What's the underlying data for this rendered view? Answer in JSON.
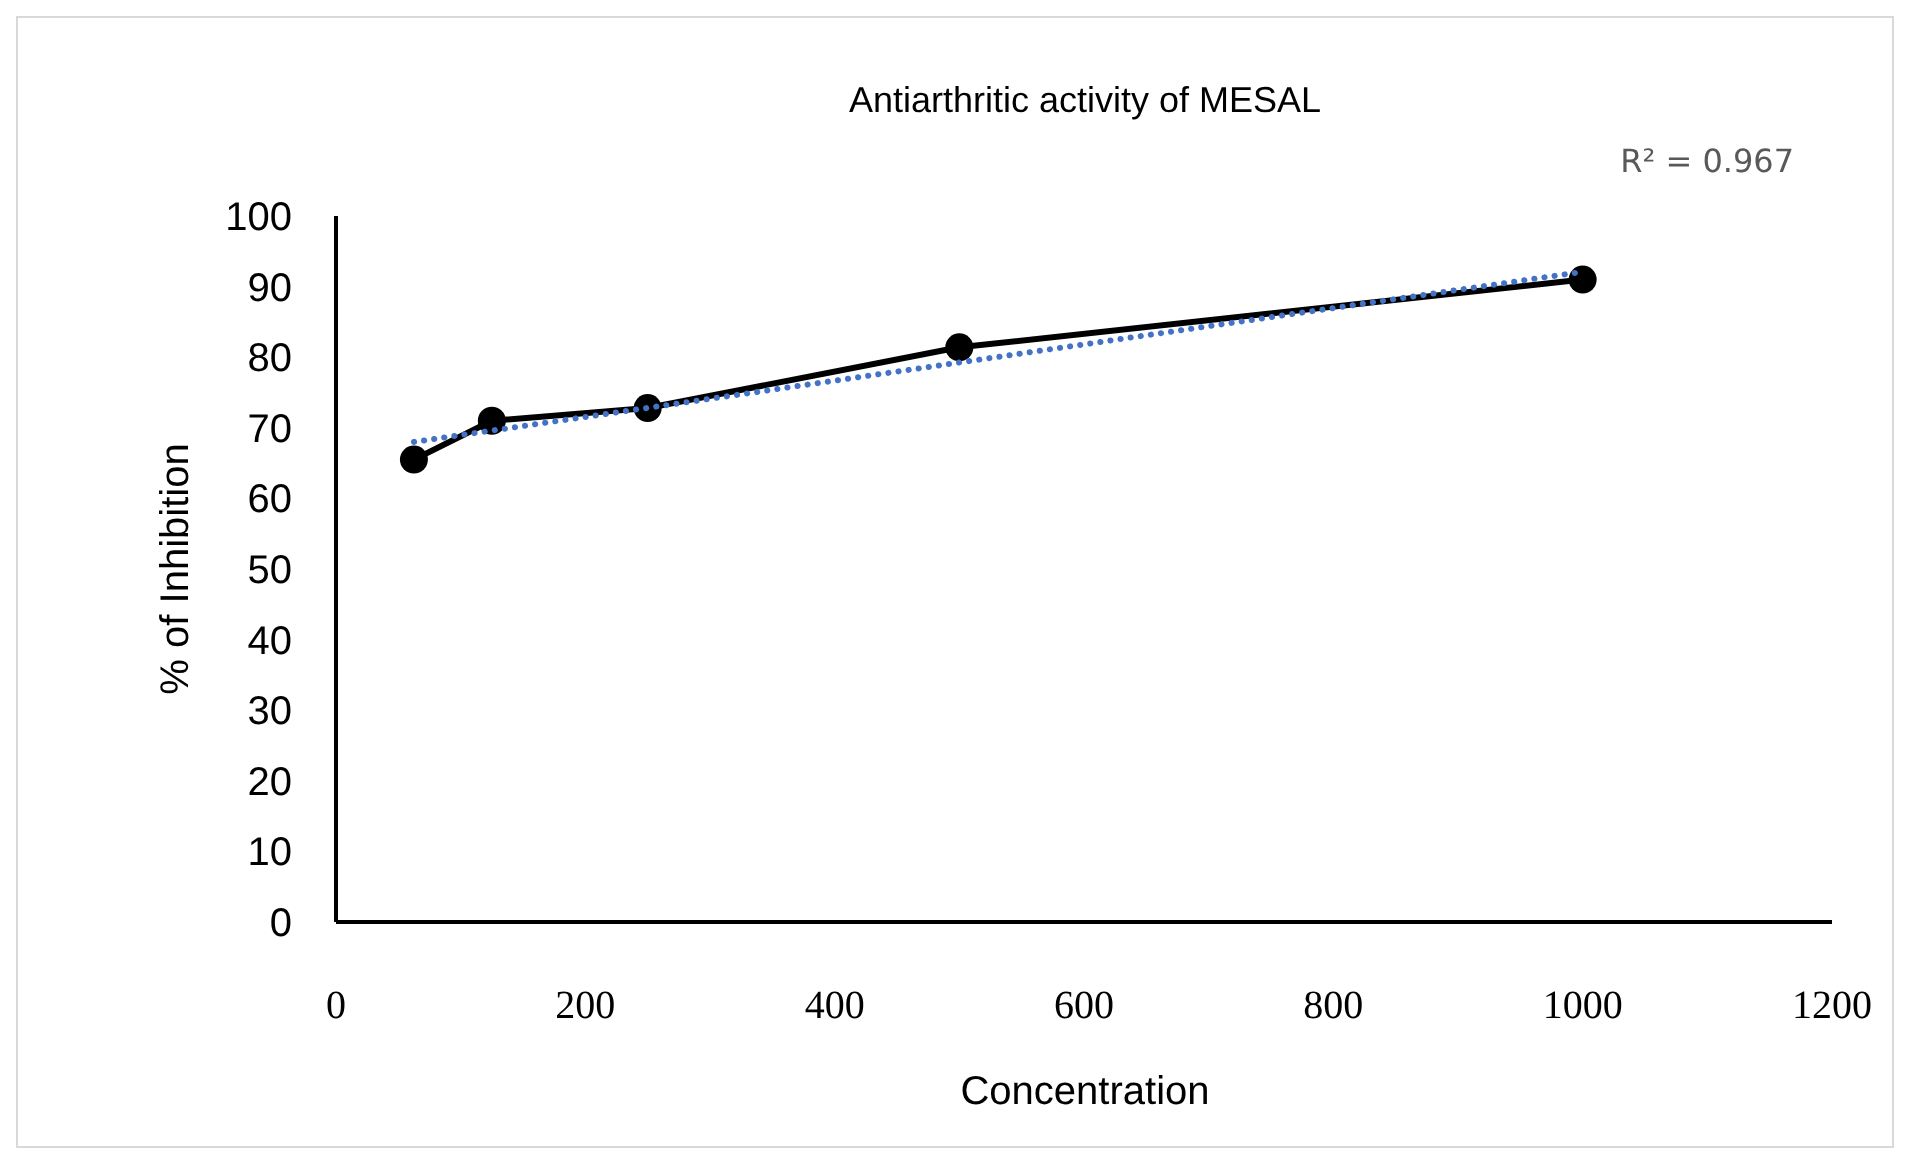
{
  "chart_data": {
    "type": "line",
    "title": "Antiarthritic activity of MESAL",
    "xlabel": "Concentration",
    "ylabel": "% of Inhibition",
    "xlim": [
      0,
      1200
    ],
    "xticks": [
      0,
      200,
      400,
      600,
      800,
      1000,
      1200
    ],
    "ylim": [
      0,
      100
    ],
    "yticks": [
      0,
      10,
      20,
      30,
      40,
      50,
      60,
      70,
      80,
      90,
      100
    ],
    "grid": false,
    "annotations": [
      "R² = 0.967"
    ],
    "series": [
      {
        "color": "#000000",
        "x": [
          62.5,
          125,
          250,
          500,
          1000
        ],
        "values": [
          65.5,
          71,
          72.8,
          81.4,
          91
        ],
        "marker": "circle",
        "line_style": "solid"
      },
      {
        "color": "#4472c4",
        "x": [
          62.5,
          1000
        ],
        "values": [
          68,
          92.1
        ],
        "marker": "none",
        "line_style": "dotted"
      }
    ]
  }
}
